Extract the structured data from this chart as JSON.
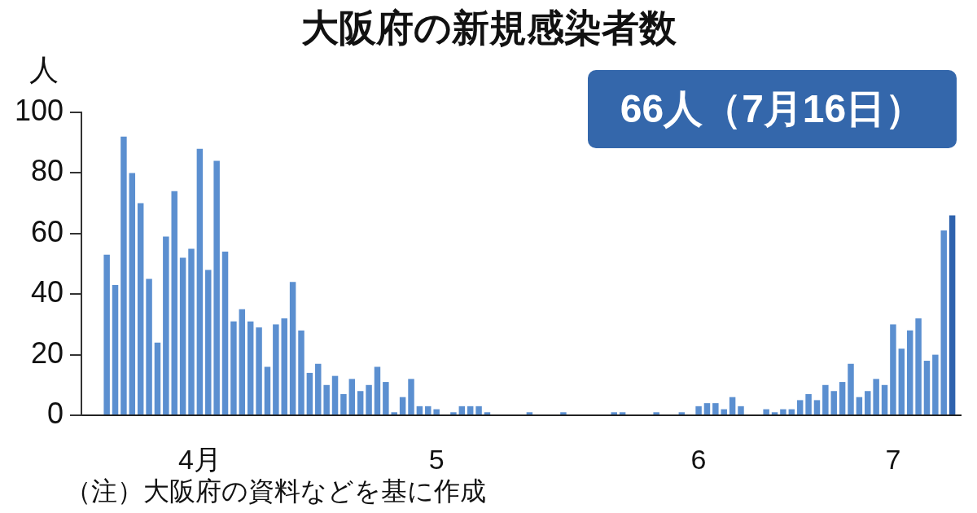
{
  "chart_data": {
    "type": "bar",
    "title": "大阪府の新規感染者数",
    "ylabel": "人",
    "x": [
      "--04-07",
      "--04-08",
      "--04-09",
      "--04-10",
      "--04-11",
      "--04-12",
      "--04-13",
      "--04-14",
      "--04-15",
      "--04-16",
      "--04-17",
      "--04-18",
      "--04-19",
      "--04-20",
      "--04-21",
      "--04-22",
      "--04-23",
      "--04-24",
      "--04-25",
      "--04-26",
      "--04-27",
      "--04-28",
      "--04-29",
      "--04-30",
      "--05-01",
      "--05-02",
      "--05-03",
      "--05-04",
      "--05-05",
      "--05-06",
      "--05-07",
      "--05-08",
      "--05-09",
      "--05-10",
      "--05-11",
      "--05-12",
      "--05-13",
      "--05-14",
      "--05-15",
      "--05-16",
      "--05-17",
      "--05-18",
      "--05-19",
      "--05-20",
      "--05-21",
      "--05-22",
      "--05-23",
      "--05-24",
      "--05-25",
      "--05-26",
      "--05-27",
      "--05-28",
      "--05-29",
      "--05-30",
      "--05-31",
      "--06-01",
      "--06-02",
      "--06-03",
      "--06-04",
      "--06-05",
      "--06-06",
      "--06-07",
      "--06-08",
      "--06-09",
      "--06-10",
      "--06-11",
      "--06-12",
      "--06-13",
      "--06-14",
      "--06-15",
      "--06-16",
      "--06-17",
      "--06-18",
      "--06-19",
      "--06-20",
      "--06-21",
      "--06-22",
      "--06-23",
      "--06-24",
      "--06-25",
      "--06-26",
      "--06-27",
      "--06-28",
      "--06-29",
      "--06-30",
      "--07-01",
      "--07-02",
      "--07-03",
      "--07-04",
      "--07-05",
      "--07-06",
      "--07-07",
      "--07-08",
      "--07-09",
      "--07-10",
      "--07-11",
      "--07-12",
      "--07-13",
      "--07-14",
      "--07-15",
      "--07-16"
    ],
    "values": [
      53,
      43,
      92,
      80,
      70,
      45,
      24,
      59,
      74,
      52,
      55,
      88,
      48,
      84,
      54,
      31,
      35,
      31,
      29,
      16,
      30,
      32,
      44,
      28,
      14,
      17,
      10,
      13,
      7,
      12,
      8,
      10,
      16,
      11,
      1,
      6,
      12,
      3,
      3,
      2,
      0,
      1,
      3,
      3,
      3,
      1,
      0,
      0,
      0,
      0,
      1,
      0,
      0,
      0,
      1,
      0,
      0,
      0,
      0,
      0,
      1,
      1,
      0,
      0,
      0,
      1,
      0,
      0,
      1,
      0,
      3,
      4,
      4,
      2,
      6,
      3,
      0,
      0,
      2,
      1,
      2,
      2,
      5,
      7,
      5,
      10,
      8,
      11,
      17,
      6,
      8,
      12,
      10,
      30,
      22,
      28,
      32,
      18,
      20,
      61,
      66
    ],
    "colors": [
      "#5b8fd0",
      "#5b8fd0",
      "#5b8fd0",
      "#5b8fd0",
      "#5b8fd0",
      "#5b8fd0",
      "#5b8fd0",
      "#5b8fd0",
      "#5b8fd0",
      "#5b8fd0",
      "#5b8fd0",
      "#5b8fd0",
      "#5b8fd0",
      "#5b8fd0",
      "#5b8fd0",
      "#5b8fd0",
      "#5b8fd0",
      "#5b8fd0",
      "#5b8fd0",
      "#5b8fd0",
      "#5b8fd0",
      "#5b8fd0",
      "#5b8fd0",
      "#5b8fd0",
      "#5b8fd0",
      "#5b8fd0",
      "#5b8fd0",
      "#5b8fd0",
      "#5b8fd0",
      "#5b8fd0",
      "#5b8fd0",
      "#5b8fd0",
      "#5b8fd0",
      "#5b8fd0",
      "#5b8fd0",
      "#5b8fd0",
      "#5b8fd0",
      "#5b8fd0",
      "#5b8fd0",
      "#5b8fd0",
      "#5b8fd0",
      "#5b8fd0",
      "#5b8fd0",
      "#5b8fd0",
      "#5b8fd0",
      "#5b8fd0",
      "#5b8fd0",
      "#5b8fd0",
      "#5b8fd0",
      "#5b8fd0",
      "#5b8fd0",
      "#5b8fd0",
      "#5b8fd0",
      "#5b8fd0",
      "#5b8fd0",
      "#5b8fd0",
      "#5b8fd0",
      "#5b8fd0",
      "#5b8fd0",
      "#5b8fd0",
      "#5b8fd0",
      "#5b8fd0",
      "#5b8fd0",
      "#5b8fd0",
      "#5b8fd0",
      "#5b8fd0",
      "#5b8fd0",
      "#5b8fd0",
      "#5b8fd0",
      "#5b8fd0",
      "#5b8fd0",
      "#5b8fd0",
      "#5b8fd0",
      "#5b8fd0",
      "#5b8fd0",
      "#5b8fd0",
      "#5b8fd0",
      "#5b8fd0",
      "#5b8fd0",
      "#5b8fd0",
      "#5b8fd0",
      "#5b8fd0",
      "#5b8fd0",
      "#5b8fd0",
      "#5b8fd0",
      "#5b8fd0",
      "#5b8fd0",
      "#5b8fd0",
      "#5b8fd0",
      "#5b8fd0",
      "#5b8fd0",
      "#5b8fd0",
      "#5b8fd0",
      "#5b8fd0",
      "#5b8fd0",
      "#5b8fd0",
      "#5b8fd0",
      "#5b8fd0",
      "#5b8fd0",
      "#5b8fd0",
      "#2e62ad"
    ],
    "xlim": [
      "--04-04",
      "--07-17"
    ],
    "xticks": [
      {
        "value": "--04-18",
        "label": "4月"
      },
      {
        "value": "--05-16",
        "label": "5"
      },
      {
        "value": "--06-16",
        "label": "6"
      },
      {
        "value": "--07-09",
        "label": "7"
      }
    ],
    "ylim": [
      0,
      100
    ],
    "yticks": [
      0,
      20,
      40,
      60,
      80,
      100
    ],
    "grid": false,
    "legend": false,
    "annotations": [
      "66人（7月16日）",
      "（注）大阪府の資料などを基に作成"
    ]
  }
}
